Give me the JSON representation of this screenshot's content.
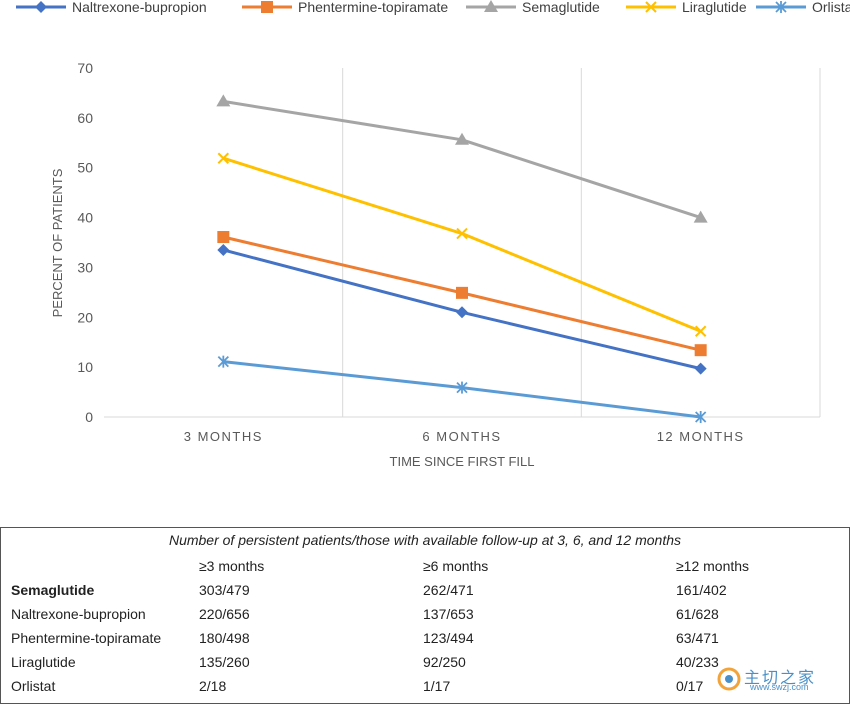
{
  "chart_data": {
    "type": "line",
    "categories": [
      "3 MONTHS",
      "6 MONTHS",
      "12 MONTHS"
    ],
    "xlabel": "TIME SINCE FIRST FILL",
    "ylabel": "PERCENT OF PATIENTS",
    "ylim": [
      0,
      70
    ],
    "yticks": [
      0,
      10,
      20,
      30,
      40,
      50,
      60,
      70
    ],
    "grid": "vertical",
    "legend": "top",
    "series": [
      {
        "name": "Naltrexone-bupropion",
        "values": [
          33.5,
          21.0,
          9.7
        ],
        "color": "#4472C4",
        "marker": "diamond"
      },
      {
        "name": "Phentermine-topiramate",
        "values": [
          36.1,
          24.9,
          13.4
        ],
        "color": "#ED7D31",
        "marker": "square"
      },
      {
        "name": "Semaglutide",
        "values": [
          63.3,
          55.6,
          40.0
        ],
        "color": "#A5A5A5",
        "marker": "triangle"
      },
      {
        "name": "Liraglutide",
        "values": [
          51.9,
          36.8,
          17.2
        ],
        "color": "#FFC000",
        "marker": "x"
      },
      {
        "name": "Orlistat",
        "values": [
          11.1,
          5.9,
          0.0
        ],
        "color": "#5B9BD5",
        "marker": "star"
      }
    ]
  },
  "table": {
    "caption": "Number of persistent patients/those with available follow-up at 3, 6, and 12 months",
    "headers": [
      "",
      "≥3 months",
      "≥6 months",
      "≥12 months"
    ],
    "rows": [
      [
        "Semaglutide",
        "303/479",
        "262/471",
        "161/402"
      ],
      [
        "Naltrexone-bupropion",
        "220/656",
        "137/653",
        "61/628"
      ],
      [
        "Phentermine-topiramate",
        "180/498",
        "123/494",
        "63/471"
      ],
      [
        "Liraglutide",
        "135/260",
        "92/250",
        "40/233"
      ],
      [
        "Orlistat",
        "2/18",
        "1/17",
        "0/17"
      ]
    ]
  },
  "watermark": {
    "text": "主切之家",
    "url": "www.swzj.com"
  }
}
